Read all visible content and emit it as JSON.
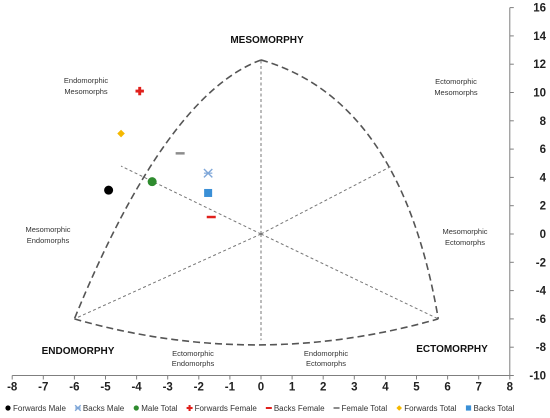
{
  "chart_data": {
    "type": "scatter",
    "xlim": [
      -8,
      8
    ],
    "ylim": [
      -10,
      16
    ],
    "x_ticks": [
      -8,
      -7,
      -6,
      -5,
      -4,
      -3,
      -2,
      -1,
      0,
      1,
      2,
      3,
      4,
      5,
      6,
      7,
      8
    ],
    "y_ticks": [
      16,
      14,
      12,
      10,
      8,
      6,
      4,
      2,
      0,
      -2,
      -4,
      -6,
      -8,
      -10
    ],
    "axes_cross_at_origin": true,
    "y_axis_position": "right",
    "grid": false,
    "legend_position": "bottom",
    "somatochart_outline": {
      "vertices": {
        "mesomorphy": [
          0,
          12.3
        ],
        "endomorphy": [
          -6,
          -6
        ],
        "ectomorphy": [
          5.7,
          -6
        ]
      },
      "inner_lines_to": [
        [
          -4.5,
          4.8
        ],
        [
          4.2,
          4.8
        ],
        [
          0,
          -7.5
        ]
      ],
      "style": "dashed"
    },
    "main_labels": {
      "mesomorphy": "MESOMORPHY",
      "endomorphy": "ENDOMORPHY",
      "ectomorphy": "ECTOMORPHY"
    },
    "region_labels": {
      "endo_meso": [
        "Endomorphic",
        "Mesomorphs"
      ],
      "ecto_meso": [
        "Ectomorphic",
        "Mesomorphs"
      ],
      "meso_endo": [
        "Mesomorphic",
        "Endomorphs"
      ],
      "meso_ecto": [
        "Mesomorphic",
        "Ectomorphs"
      ],
      "ecto_endo": [
        "Ectomorphic",
        "Endomorphs"
      ],
      "endo_ecto": [
        "Endomorphic",
        "Ectomorphs"
      ]
    },
    "series": [
      {
        "name": "Forwards Male",
        "x": -4.9,
        "y": 3.1,
        "marker": "circle",
        "color": "#000000"
      },
      {
        "name": "Backs Male",
        "x": -1.7,
        "y": 4.3,
        "marker": "x",
        "color": "#7fa7d8"
      },
      {
        "name": "Male Total",
        "x": -3.5,
        "y": 3.7,
        "marker": "circle",
        "color": "#2e8b2e"
      },
      {
        "name": "Forwards Female",
        "x": -3.9,
        "y": 10.1,
        "marker": "plus",
        "color": "#e0201c"
      },
      {
        "name": "Backs Female",
        "x": -1.6,
        "y": 1.2,
        "marker": "dash",
        "color": "#e0201c"
      },
      {
        "name": "Female Total",
        "x": -2.6,
        "y": 5.7,
        "marker": "dash",
        "color": "#8c8c8c"
      },
      {
        "name": "Forwards Total",
        "x": -4.5,
        "y": 7.1,
        "marker": "diamond",
        "color": "#f5b800"
      },
      {
        "name": "Backs Total",
        "x": -1.7,
        "y": 2.9,
        "marker": "square",
        "color": "#3a8fd6"
      }
    ]
  }
}
